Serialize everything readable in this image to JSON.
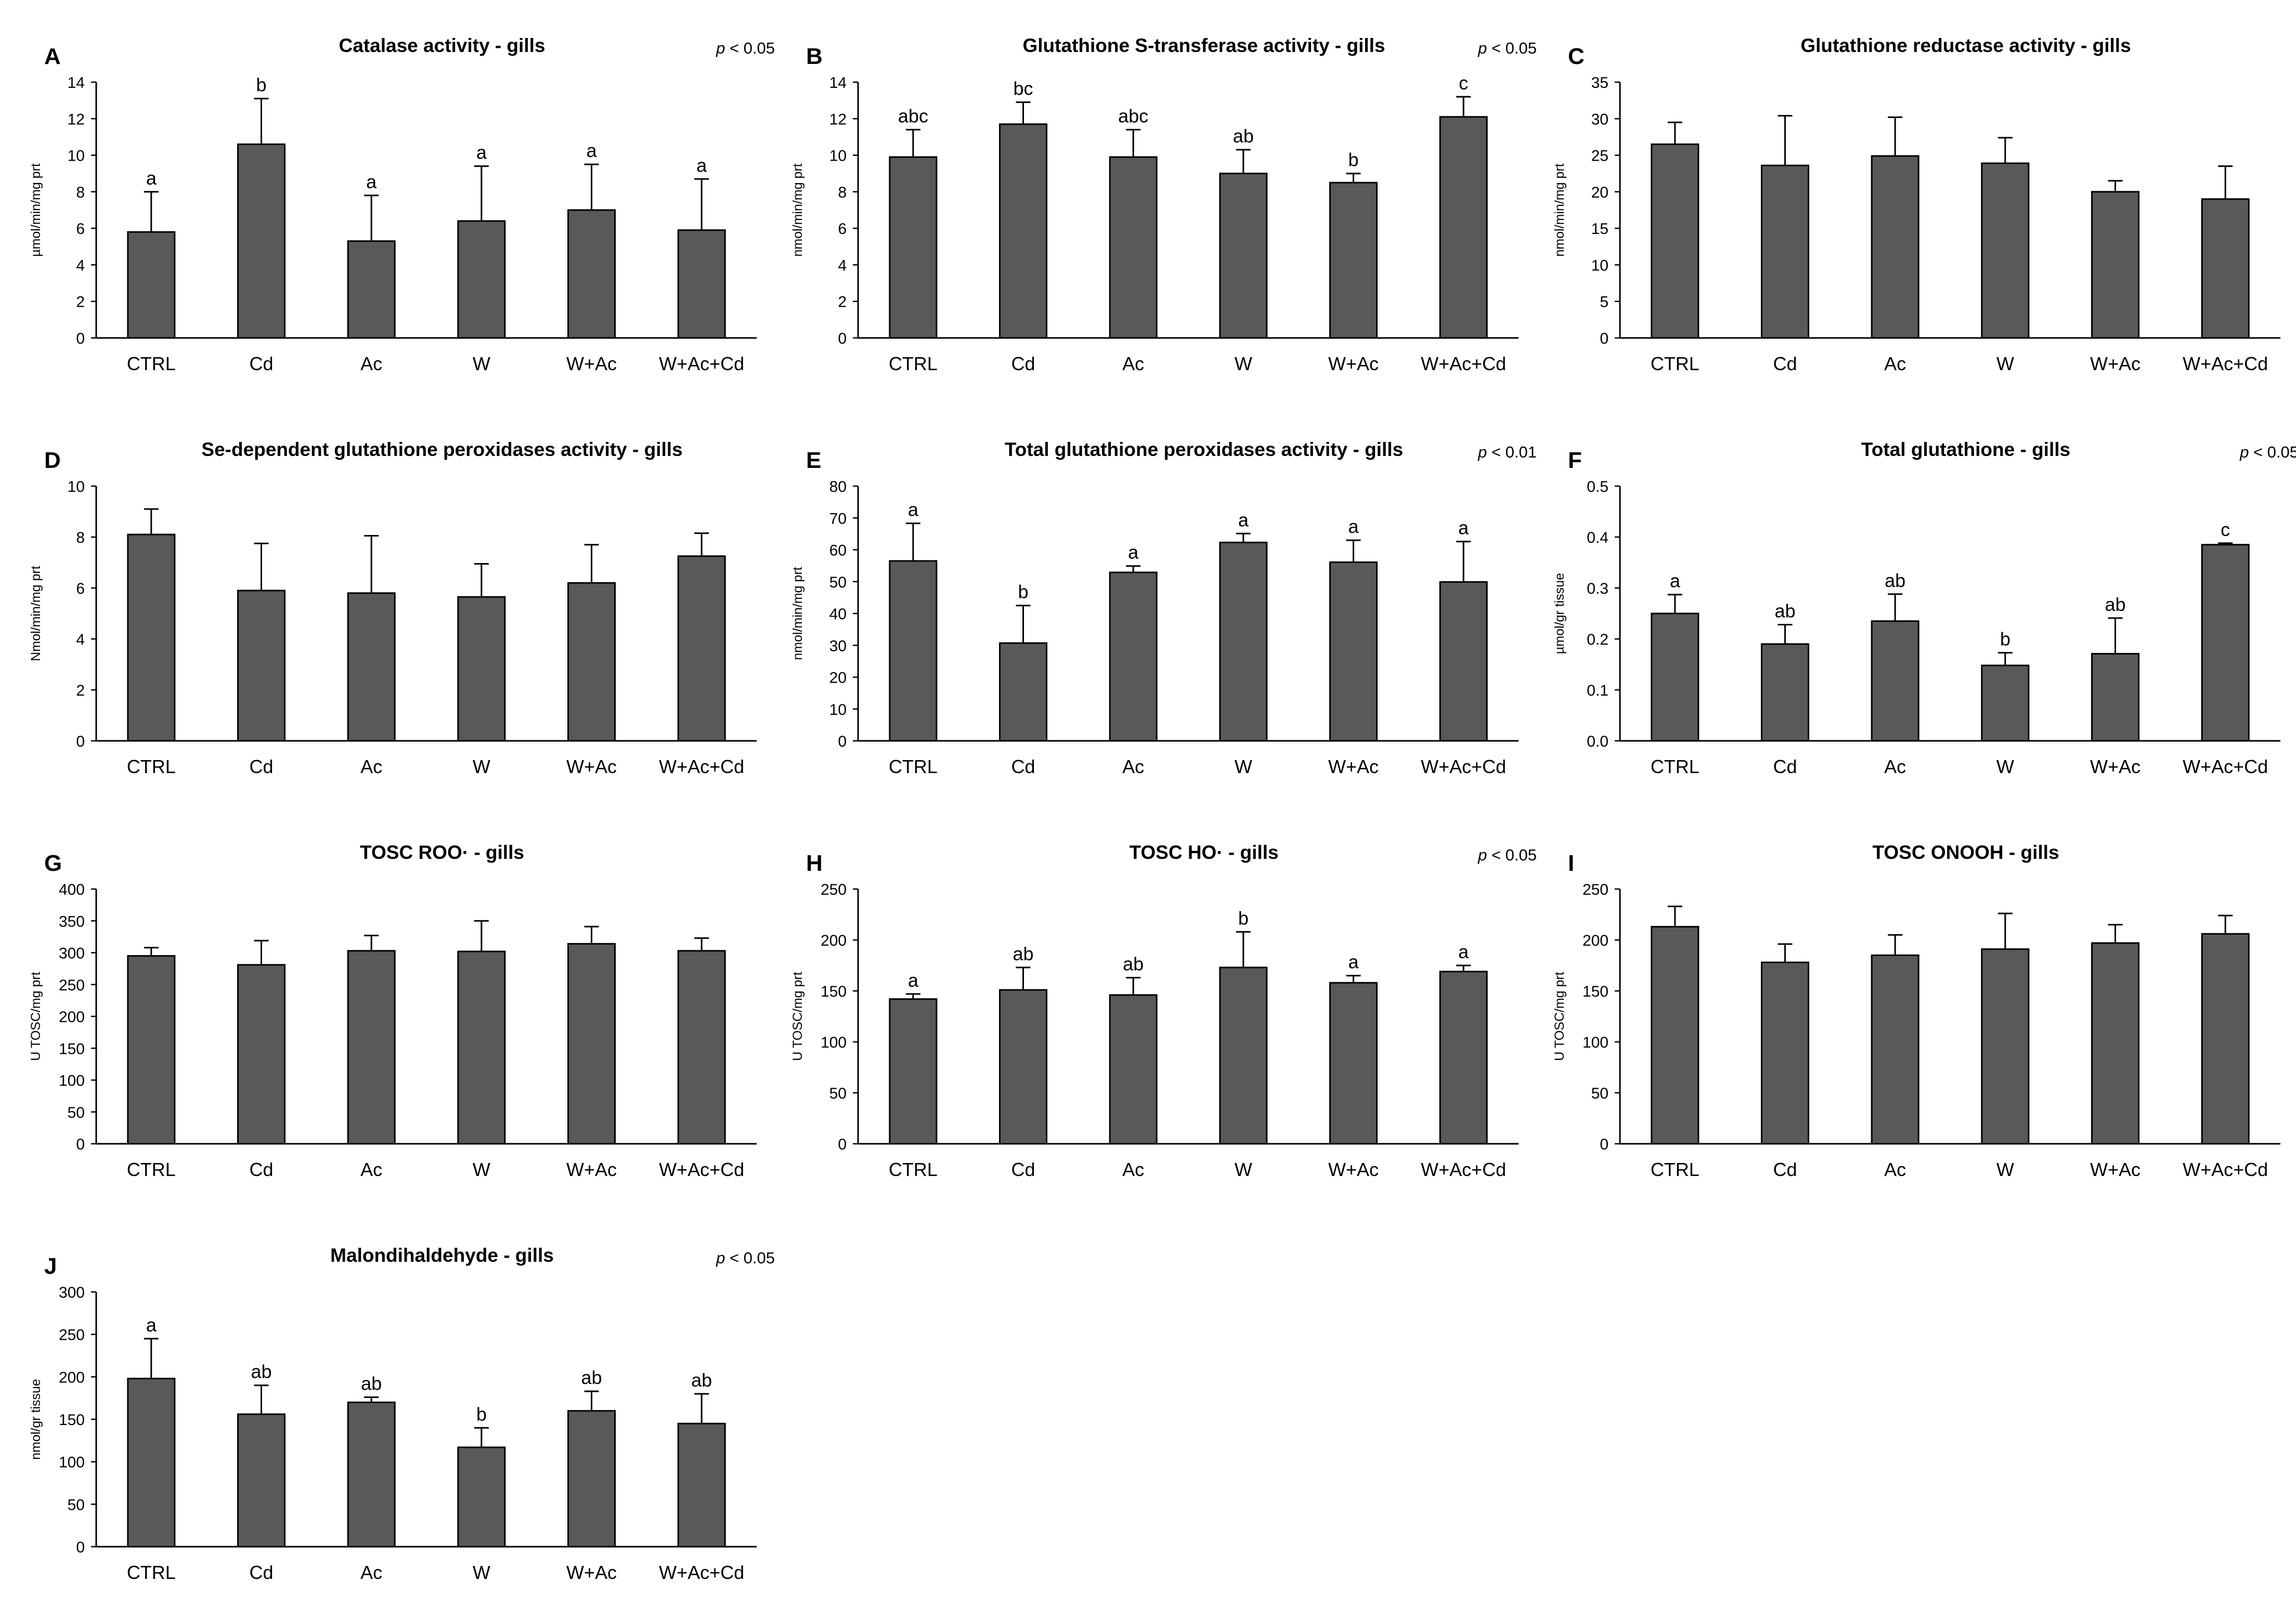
{
  "chart_data": [
    {
      "id": "A",
      "type": "bar",
      "title": "Catalase activity - gills",
      "pvalue": "< 0.05",
      "ylabel": "µmol/min/mg prt",
      "ylim": [
        0,
        14
      ],
      "yticks": [
        0,
        2,
        4,
        6,
        8,
        10,
        12,
        14
      ],
      "categories": [
        "CTRL",
        "Cd",
        "Ac",
        "W",
        "W+Ac",
        "W+Ac+Cd"
      ],
      "values": [
        5.8,
        10.6,
        5.3,
        6.4,
        7.0,
        5.9
      ],
      "errors": [
        2.2,
        2.5,
        2.5,
        3.0,
        2.5,
        2.8
      ],
      "labels": [
        "a",
        "b",
        "a",
        "a",
        "a",
        "a"
      ]
    },
    {
      "id": "B",
      "type": "bar",
      "title": "Glutathione S-transferase activity - gills",
      "pvalue": "< 0.05",
      "ylabel": "nmol/min/mg prt",
      "ylim": [
        0,
        14
      ],
      "yticks": [
        0,
        2,
        4,
        6,
        8,
        10,
        12,
        14
      ],
      "categories": [
        "CTRL",
        "Cd",
        "Ac",
        "W",
        "W+Ac",
        "W+Ac+Cd"
      ],
      "values": [
        9.9,
        11.7,
        9.9,
        9.0,
        8.5,
        12.1
      ],
      "errors": [
        1.5,
        1.2,
        1.5,
        1.3,
        0.5,
        1.1
      ],
      "labels": [
        "abc",
        "bc",
        "abc",
        "ab",
        "b",
        "c"
      ]
    },
    {
      "id": "C",
      "type": "bar",
      "title": "Glutathione reductase activity - gills",
      "pvalue": "",
      "ylabel": "nmol/min/mg prt",
      "ylim": [
        0,
        35
      ],
      "yticks": [
        0,
        5,
        10,
        15,
        20,
        25,
        30,
        35
      ],
      "categories": [
        "CTRL",
        "Cd",
        "Ac",
        "W",
        "W+Ac",
        "W+Ac+Cd"
      ],
      "values": [
        26.5,
        23.6,
        24.9,
        23.9,
        20.0,
        19.0
      ],
      "errors": [
        3.0,
        6.8,
        5.3,
        3.5,
        1.5,
        4.5
      ],
      "labels": [
        "",
        "",
        "",
        "",
        "",
        ""
      ]
    },
    {
      "id": "D",
      "type": "bar",
      "title": "Se-dependent glutathione peroxidases activity - gills",
      "pvalue": "",
      "ylabel": "Nmol/min/mg prt",
      "ylim": [
        0,
        10
      ],
      "yticks": [
        0,
        2,
        4,
        6,
        8,
        10
      ],
      "categories": [
        "CTRL",
        "Cd",
        "Ac",
        "W",
        "W+Ac",
        "W+Ac+Cd"
      ],
      "values": [
        8.1,
        5.9,
        5.8,
        5.65,
        6.2,
        7.25
      ],
      "errors": [
        1.0,
        1.85,
        2.25,
        1.3,
        1.5,
        0.9
      ],
      "labels": [
        "",
        "",
        "",
        "",
        "",
        ""
      ]
    },
    {
      "id": "E",
      "type": "bar",
      "title": "Total glutathione peroxidases activity - gills",
      "pvalue": "< 0.01",
      "ylabel": "nmol/min/mg prt",
      "ylim": [
        0,
        80
      ],
      "yticks": [
        0,
        10,
        20,
        30,
        40,
        50,
        60,
        70,
        80
      ],
      "categories": [
        "CTRL",
        "Cd",
        "Ac",
        "W",
        "W+Ac",
        "W+Ac+Cd"
      ],
      "values": [
        56.5,
        30.7,
        52.9,
        62.3,
        56.1,
        49.9
      ],
      "errors": [
        11.8,
        11.8,
        2.0,
        2.8,
        6.9,
        12.7
      ],
      "labels": [
        "a",
        "b",
        "a",
        "a",
        "a",
        "a"
      ]
    },
    {
      "id": "F",
      "type": "bar",
      "title": "Total glutathione - gills",
      "pvalue": "< 0.05",
      "ylabel": "µmol/gr tissue",
      "ylim": [
        0,
        0.5
      ],
      "yticks": [
        0,
        0.1,
        0.2,
        0.3,
        0.4,
        0.5
      ],
      "categories": [
        "CTRL",
        "Cd",
        "Ac",
        "W",
        "W+Ac",
        "W+Ac+Cd"
      ],
      "values": [
        0.25,
        0.19,
        0.235,
        0.148,
        0.171,
        0.385
      ],
      "errors": [
        0.037,
        0.038,
        0.053,
        0.025,
        0.07,
        0.003
      ],
      "labels": [
        "a",
        "ab",
        "ab",
        "b",
        "ab",
        "c"
      ]
    },
    {
      "id": "G",
      "type": "bar",
      "title": "TOSC ROO· - gills",
      "pvalue": "",
      "ylabel": "U TOSC/mg prt",
      "ylim": [
        0,
        400
      ],
      "yticks": [
        0,
        50,
        100,
        150,
        200,
        250,
        300,
        350,
        400
      ],
      "categories": [
        "CTRL",
        "Cd",
        "Ac",
        "W",
        "W+Ac",
        "W+Ac+Cd"
      ],
      "values": [
        295,
        281,
        303,
        302,
        314,
        303
      ],
      "errors": [
        13,
        38,
        24,
        48,
        27,
        20
      ],
      "labels": [
        "",
        "",
        "",
        "",
        "",
        ""
      ]
    },
    {
      "id": "H",
      "type": "bar",
      "title": "TOSC HO· - gills",
      "pvalue": "< 0.05",
      "ylabel": "U TOSC/mg prt",
      "ylim": [
        0,
        250
      ],
      "yticks": [
        0,
        50,
        100,
        150,
        200,
        250
      ],
      "categories": [
        "CTRL",
        "Cd",
        "Ac",
        "W",
        "W+Ac",
        "W+Ac+Cd"
      ],
      "values": [
        142,
        151,
        146,
        173,
        158,
        169
      ],
      "errors": [
        5,
        22,
        17,
        35,
        7,
        6
      ],
      "labels": [
        "a",
        "ab",
        "ab",
        "b",
        "a",
        "a"
      ]
    },
    {
      "id": "I",
      "type": "bar",
      "title": "TOSC ONOOH - gills",
      "pvalue": "",
      "ylabel": "U TOSC/mg prt",
      "ylim": [
        0,
        250
      ],
      "yticks": [
        0,
        50,
        100,
        150,
        200,
        250
      ],
      "categories": [
        "CTRL",
        "Cd",
        "Ac",
        "W",
        "W+Ac",
        "W+Ac+Cd"
      ],
      "values": [
        213,
        178,
        185,
        191,
        197,
        206
      ],
      "errors": [
        20,
        18,
        20,
        35,
        18,
        18
      ],
      "labels": [
        "",
        "",
        "",
        "",
        "",
        ""
      ]
    },
    {
      "id": "J",
      "type": "bar",
      "title": "Malondihaldehyde - gills",
      "pvalue": "< 0.05",
      "ylabel": "nmol/gr tissue",
      "ylim": [
        0,
        300
      ],
      "yticks": [
        0,
        50,
        100,
        150,
        200,
        250,
        300
      ],
      "categories": [
        "CTRL",
        "Cd",
        "Ac",
        "W",
        "W+Ac",
        "W+Ac+Cd"
      ],
      "values": [
        198,
        156,
        170,
        117,
        160,
        145
      ],
      "errors": [
        47,
        34,
        6,
        23,
        23,
        35
      ],
      "labels": [
        "a",
        "ab",
        "ab",
        "b",
        "ab",
        "ab"
      ]
    }
  ]
}
